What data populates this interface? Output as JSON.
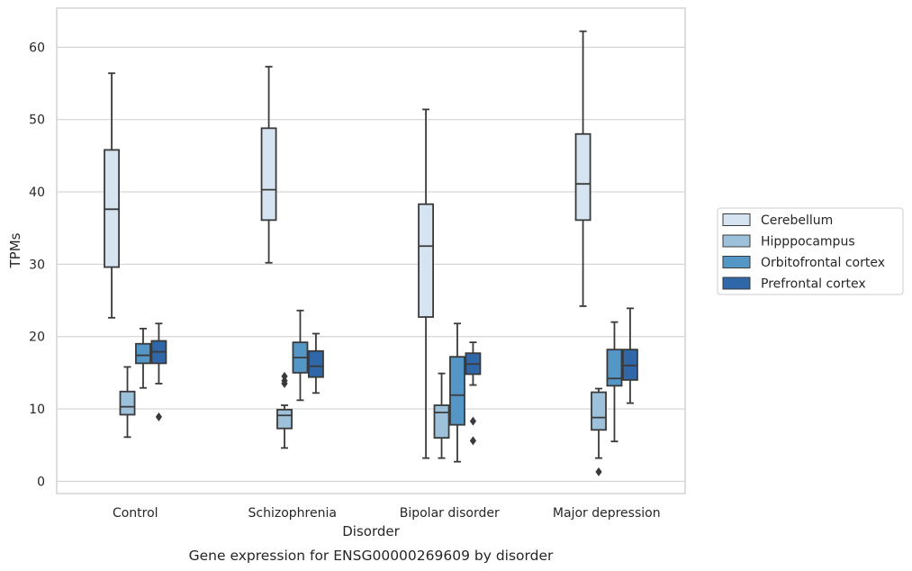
{
  "chart_data": {
    "type": "box",
    "title": "",
    "caption": "Gene expression for ENSG00000269609 by disorder",
    "xlabel": "Disorder",
    "ylabel": "TPMs",
    "ylim": [
      -1.7,
      65.4
    ],
    "yticks": [
      0,
      10,
      20,
      30,
      40,
      50,
      60
    ],
    "grid": true,
    "legend_position": "right",
    "categories": [
      "Control",
      "Schizophrenia",
      "Bipolar disorder",
      "Major depression"
    ],
    "series": [
      {
        "name": "Cerebellum",
        "color": "#d6e4f2",
        "boxes": [
          {
            "whislo": 22.6,
            "q1": 29.6,
            "med": 37.6,
            "q3": 45.8,
            "whishi": 56.4,
            "fliers": []
          },
          {
            "whislo": 30.2,
            "q1": 36.1,
            "med": 40.3,
            "q3": 48.8,
            "whishi": 57.3,
            "fliers": []
          },
          {
            "whislo": 3.2,
            "q1": 22.7,
            "med": 32.5,
            "q3": 38.3,
            "whishi": 51.4,
            "fliers": []
          },
          {
            "whislo": 24.2,
            "q1": 36.1,
            "med": 41.1,
            "q3": 48.0,
            "whishi": 62.2,
            "fliers": []
          }
        ]
      },
      {
        "name": "Hipppocampus",
        "color": "#9dc1da",
        "boxes": [
          {
            "whislo": 6.1,
            "q1": 9.2,
            "med": 10.3,
            "q3": 12.4,
            "whishi": 15.8,
            "fliers": []
          },
          {
            "whislo": 4.6,
            "q1": 7.3,
            "med": 9.1,
            "q3": 9.9,
            "whishi": 10.5,
            "fliers": [
              13.5,
              13.9,
              14.5
            ]
          },
          {
            "whislo": 3.2,
            "q1": 6.0,
            "med": 9.5,
            "q3": 10.5,
            "whishi": 14.9,
            "fliers": []
          },
          {
            "whislo": 3.2,
            "q1": 7.1,
            "med": 8.8,
            "q3": 12.3,
            "whishi": 12.8,
            "fliers": [
              1.3
            ]
          }
        ]
      },
      {
        "name": "Orbitofrontal cortex",
        "color": "#5496c6",
        "boxes": [
          {
            "whislo": 12.9,
            "q1": 16.3,
            "med": 17.4,
            "q3": 19.0,
            "whishi": 21.1,
            "fliers": []
          },
          {
            "whislo": 11.2,
            "q1": 15.0,
            "med": 17.1,
            "q3": 19.2,
            "whishi": 23.6,
            "fliers": []
          },
          {
            "whislo": 2.7,
            "q1": 7.8,
            "med": 11.9,
            "q3": 17.2,
            "whishi": 21.8,
            "fliers": []
          },
          {
            "whislo": 5.5,
            "q1": 13.2,
            "med": 14.2,
            "q3": 18.2,
            "whishi": 22.0,
            "fliers": []
          }
        ]
      },
      {
        "name": "Prefrontal cortex",
        "color": "#2f67a8",
        "boxes": [
          {
            "whislo": 13.5,
            "q1": 16.3,
            "med": 17.9,
            "q3": 19.4,
            "whishi": 21.8,
            "fliers": [
              8.9
            ]
          },
          {
            "whislo": 12.2,
            "q1": 14.4,
            "med": 15.9,
            "q3": 18.0,
            "whishi": 20.4,
            "fliers": []
          },
          {
            "whislo": 13.3,
            "q1": 14.8,
            "med": 16.2,
            "q3": 17.7,
            "whishi": 19.2,
            "fliers": [
              5.6,
              8.3
            ]
          },
          {
            "whislo": 10.8,
            "q1": 14.0,
            "med": 16.0,
            "q3": 18.2,
            "whishi": 23.9,
            "fliers": []
          }
        ]
      }
    ]
  }
}
